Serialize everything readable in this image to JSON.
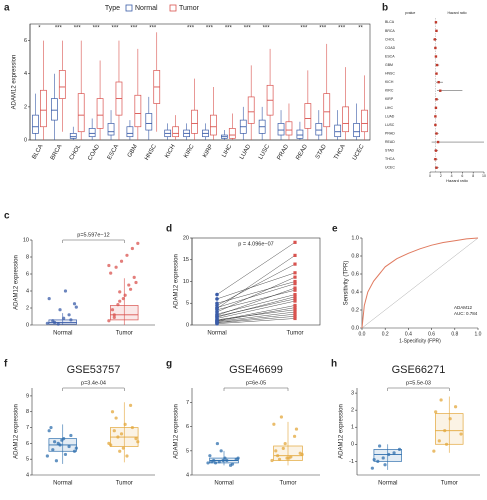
{
  "chart_data": [
    {
      "type": "box",
      "panel": "a",
      "ylabel": "ADAM12 expression",
      "legend_title": "Type",
      "categories": [
        "BLCA",
        "BRCA",
        "CHOL",
        "COAD",
        "ESCA",
        "GBM",
        "HNSC",
        "KICH",
        "KIRC",
        "KIRP",
        "LIHC",
        "LUAD",
        "LUSC",
        "PRAD",
        "READ",
        "STAD",
        "THCA",
        "UCEC"
      ],
      "significance": [
        "*",
        "***",
        "***",
        "***",
        "***",
        "***",
        "***",
        null,
        "***",
        "***",
        "***",
        "***",
        "***",
        null,
        "***",
        "***",
        "***",
        "**"
      ],
      "ylim": [
        0,
        7
      ],
      "yticks": [
        0,
        2,
        4,
        6
      ],
      "series": [
        {
          "name": "Normal",
          "color": "#3a5ca8",
          "boxes": [
            [
              0,
              0.4,
              0.8,
              1.5,
              2.8
            ],
            [
              0,
              1.2,
              1.8,
              2.5,
              4
            ],
            [
              0,
              0.1,
              0.2,
              0.4,
              0.8
            ],
            [
              0,
              0.2,
              0.4,
              0.7,
              1.3
            ],
            [
              0,
              0.3,
              0.5,
              1,
              1.8
            ],
            [
              0,
              0.2,
              0.4,
              0.8,
              1.2
            ],
            [
              0,
              0.6,
              1,
              1.6,
              2.6
            ],
            [
              0,
              0.2,
              0.4,
              0.6,
              1
            ],
            [
              0,
              0.2,
              0.4,
              0.6,
              1
            ],
            [
              0,
              0.2,
              0.4,
              0.6,
              1
            ],
            [
              0,
              0.1,
              0.2,
              0.3,
              0.6
            ],
            [
              0,
              0.4,
              0.8,
              1.2,
              2
            ],
            [
              0,
              0.4,
              0.8,
              1.2,
              2
            ],
            [
              0,
              0.3,
              0.6,
              1,
              1.8
            ],
            [
              0,
              0.1,
              0.3,
              0.6,
              1.1
            ],
            [
              0,
              0.3,
              0.6,
              1,
              1.8
            ],
            [
              0,
              0.2,
              0.5,
              0.9,
              1.8
            ],
            [
              0,
              0.2,
              0.5,
              1,
              2.2
            ]
          ]
        },
        {
          "name": "Tumor",
          "color": "#d9534f",
          "boxes": [
            [
              0,
              0.8,
              1.8,
              3,
              6
            ],
            [
              0.5,
              2.5,
              3.2,
              4.2,
              6
            ],
            [
              0,
              0.5,
              1.5,
              2.8,
              6
            ],
            [
              0,
              0.7,
              1.5,
              2.5,
              4.8
            ],
            [
              0,
              1.5,
              2.5,
              3.5,
              6
            ],
            [
              0,
              0.8,
              1.6,
              2.7,
              5.5
            ],
            [
              0.5,
              2.2,
              3.2,
              4.2,
              6.5
            ],
            [
              0,
              0.2,
              0.4,
              0.8,
              1.5
            ],
            [
              0,
              0.4,
              1,
              1.8,
              3.7
            ],
            [
              0,
              0.3,
              0.8,
              1.5,
              3.2
            ],
            [
              0,
              0.1,
              0.3,
              0.7,
              1.6
            ],
            [
              0,
              1,
              1.7,
              2.6,
              4.5
            ],
            [
              0,
              1.5,
              2.4,
              3.3,
              5.5
            ],
            [
              0,
              0.3,
              0.6,
              1.1,
              2.2
            ],
            [
              0,
              0.7,
              1.3,
              2.2,
              4.2
            ],
            [
              0,
              0.8,
              1.7,
              2.8,
              5.8
            ],
            [
              0,
              0.5,
              1,
              2,
              4.4
            ],
            [
              0,
              0.5,
              1,
              1.8,
              3.9
            ]
          ]
        }
      ]
    },
    {
      "type": "forest",
      "panel": "b",
      "header_left": "pvalue",
      "header_right": "Hazard ratio",
      "xlabel": "Hazard ratio",
      "categories": [
        "BLCA",
        "BRCA",
        "CHOL",
        "COAD",
        "ESCA",
        "GBM",
        "HNSC",
        "KICH",
        "KIRC",
        "KIRP",
        "LIHC",
        "LUAD",
        "LUSC",
        "PRAD",
        "READ",
        "STAD",
        "THCA",
        "UCEC"
      ],
      "hr": [
        1.1,
        1.2,
        0.9,
        1.0,
        1.1,
        1.3,
        1.2,
        1.6,
        1.9,
        1.2,
        1.1,
        1.0,
        1.0,
        1.2,
        1.5,
        1.1,
        1.0,
        1.2
      ],
      "ci_low": [
        0.95,
        1.0,
        0.6,
        0.8,
        0.9,
        1.0,
        1.0,
        1.1,
        1.3,
        0.9,
        0.9,
        0.8,
        0.8,
        0.9,
        0.3,
        0.8,
        0.7,
        0.9
      ],
      "ci_high": [
        1.3,
        1.4,
        1.3,
        1.2,
        1.3,
        1.7,
        1.4,
        2.4,
        6.0,
        1.6,
        1.3,
        1.2,
        1.2,
        1.6,
        10,
        1.5,
        1.4,
        1.6
      ],
      "reference": 1,
      "xlim": [
        0,
        10
      ],
      "xticks": [
        0,
        2,
        4,
        6,
        8,
        10
      ],
      "color": "#c0392b"
    },
    {
      "type": "box",
      "panel": "c",
      "ylabel": "ADAM12 expression",
      "annotation": "p=5.597e−12",
      "categories": [
        "Normal",
        "Tumor"
      ],
      "colors": [
        "#3a5ca8",
        "#d9534f"
      ],
      "boxes": [
        [
          0,
          0.1,
          0.3,
          0.6,
          1.4
        ],
        [
          0,
          0.6,
          1.2,
          2.3,
          5.5
        ]
      ],
      "points": [
        [
          0.2,
          0.5,
          0.1,
          0.8,
          1.2,
          2.5,
          3.1,
          0.3,
          1.8,
          4.0,
          0.6,
          2.1
        ],
        [
          0.5,
          1.2,
          2.8,
          3.5,
          4.2,
          5.0,
          6.1,
          6.8,
          7.5,
          8.2,
          9.0,
          9.6,
          1.8,
          2.4,
          3.1,
          4.7,
          5.6,
          7.0,
          0.9,
          3.9
        ]
      ],
      "ylim": [
        0,
        10
      ],
      "yticks": [
        0,
        2,
        4,
        6,
        8,
        10
      ]
    },
    {
      "type": "paired",
      "panel": "d",
      "ylabel": "ADAM12 expression",
      "annotation": "p = 4.096e−07",
      "categories": [
        "Normal",
        "Tumor"
      ],
      "colors": [
        "#3a5ca8",
        "#d9534f"
      ],
      "normal": [
        0.5,
        1.0,
        2.0,
        3.5,
        4.0,
        0.8,
        1.5,
        5.0,
        6.0,
        2.5,
        0.3,
        1.2,
        3.0,
        4.5,
        7.0,
        0.6,
        2.2,
        1.8,
        3.8,
        0.9
      ],
      "tumor": [
        2.0,
        4.5,
        6.0,
        8.0,
        9.5,
        3.0,
        5.5,
        10.0,
        12.0,
        7.0,
        1.5,
        3.5,
        11.0,
        14.0,
        19.0,
        2.5,
        8.5,
        6.5,
        16.0,
        4.0
      ],
      "ylim": [
        0,
        20
      ],
      "yticks": [
        0,
        5,
        10,
        15,
        20
      ]
    },
    {
      "type": "roc",
      "panel": "e",
      "xlabel": "1-Specificity (FPR)",
      "ylabel": "Sensitivity (TPR)",
      "legend": [
        "ADAM12",
        "AUC: 0.784"
      ],
      "x": [
        0,
        0.02,
        0.05,
        0.1,
        0.15,
        0.2,
        0.3,
        0.4,
        0.5,
        0.6,
        0.7,
        0.8,
        0.9,
        1
      ],
      "y": [
        0,
        0.25,
        0.4,
        0.52,
        0.6,
        0.68,
        0.77,
        0.83,
        0.88,
        0.92,
        0.95,
        0.97,
        0.99,
        1
      ],
      "color": "#e07a5f",
      "xlim": [
        0,
        1
      ],
      "ylim": [
        0,
        1
      ],
      "xticks": [
        {
          "value": 0,
          "label": "0.0"
        },
        0.2,
        0.4,
        0.6,
        0.8,
        {
          "value": 1,
          "label": "1.0"
        }
      ],
      "yticks": [
        {
          "value": 0,
          "label": "0.0"
        },
        0.2,
        0.4,
        0.6,
        0.8,
        {
          "value": 1,
          "label": "1.0"
        }
      ]
    },
    {
      "type": "box",
      "panel": "f",
      "title": "GSE53757",
      "ylabel": "ADAM12 expression",
      "annotation": "p=3.4e-04",
      "categories": [
        "Normal",
        "Tumor"
      ],
      "colors": [
        "#2f6fad",
        "#e3a73b"
      ],
      "boxes": [
        [
          4.7,
          5.5,
          5.9,
          6.3,
          7.2
        ],
        [
          4.8,
          5.8,
          6.4,
          7.0,
          8.6
        ]
      ],
      "points": [
        [
          5.2,
          5.6,
          6.0,
          6.3,
          5.8,
          5.5,
          6.8,
          6.1,
          5.9,
          5.3,
          6.5,
          5.7,
          7.0,
          4.9,
          6.2
        ],
        [
          6.0,
          6.8,
          5.5,
          7.2,
          8.4,
          6.3,
          5.9,
          7.6,
          6.6,
          5.2,
          7.0,
          6.1,
          8.0,
          6.4,
          5.7
        ]
      ],
      "ylim": [
        4,
        9.5
      ],
      "yticks": [
        4,
        5,
        6,
        7,
        8,
        9
      ]
    },
    {
      "type": "box",
      "panel": "g",
      "title": "GSE46699",
      "ylabel": "ADAM12 expression",
      "annotation": "p=6e-05",
      "categories": [
        "Normal",
        "Tumor"
      ],
      "colors": [
        "#2f6fad",
        "#e3a73b"
      ],
      "boxes": [
        [
          4.4,
          4.5,
          4.6,
          4.7,
          5
        ],
        [
          4.4,
          4.6,
          4.8,
          5.2,
          6.2
        ]
      ],
      "points": [
        [
          4.5,
          4.6,
          4.55,
          4.7,
          4.4,
          4.65,
          4.8,
          4.5,
          5.0,
          4.6,
          4.45,
          4.7,
          4.55,
          5.3,
          4.6
        ],
        [
          4.6,
          4.8,
          5.1,
          4.7,
          5.6,
          4.9,
          6.1,
          4.65,
          5.3,
          4.75,
          5.9,
          4.85,
          5.0,
          6.4,
          4.7
        ]
      ],
      "ylim": [
        4,
        7.6
      ],
      "yticks": [
        4,
        5,
        6,
        7
      ]
    },
    {
      "type": "box",
      "panel": "h",
      "title": "GSE66271",
      "ylabel": "ADAM12 expression",
      "annotation": "p=5.5e-03",
      "categories": [
        "Normal",
        "Tumor"
      ],
      "colors": [
        "#2f6fad",
        "#e3a73b"
      ],
      "boxes": [
        [
          -1.5,
          -1,
          -0.6,
          -0.3,
          0
        ],
        [
          -0.5,
          0,
          0.8,
          1.8,
          2.8
        ]
      ],
      "points": [
        [
          -1.4,
          -1.0,
          -0.8,
          -0.6,
          -0.5,
          -0.3,
          -0.9,
          -0.1,
          -1.2
        ],
        [
          -0.4,
          0.2,
          0.8,
          1.5,
          2.2,
          0.6,
          1.9,
          2.6,
          0.0
        ]
      ],
      "ylim": [
        -1.8,
        3.3
      ],
      "yticks": [
        -1,
        0,
        1,
        2,
        3
      ]
    }
  ]
}
